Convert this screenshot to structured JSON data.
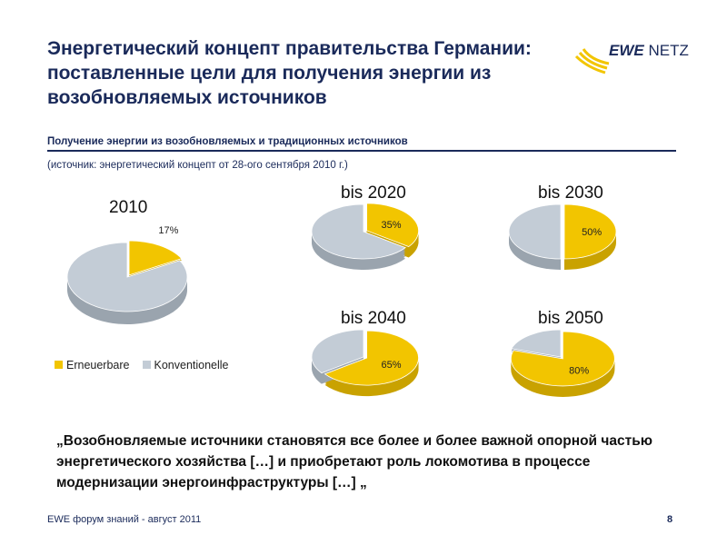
{
  "header": {
    "title": "Энергетический концепт правительства Германии: поставленные цели для получения энергии из возобновляемых источников",
    "logo_text_bold": "EWE",
    "logo_text": "NETZ"
  },
  "subtitle": "Получение энергии из возобновляемых и традиционных источников",
  "source": "(источник: энергетический концепт от 28-ого сентября 2010 г.)",
  "legend": [
    {
      "label": "Erneuerbare",
      "color": "#f2c500"
    },
    {
      "label": "Konventionelle",
      "color": "#c3ccd6"
    }
  ],
  "quote": "„Возобновляемые источники становятся все более и более важной опорной частью энергетического хозяйства […] и приобретают роль локомотива в процессе модернизации энергоинфраструктуры […] „",
  "footer": {
    "text": "EWE форум знаний - август 2011",
    "page": "8"
  },
  "chart_data": [
    {
      "type": "pie",
      "title": "2010",
      "labels": [
        "Erneuerbare",
        "Konventionelle"
      ],
      "values": [
        17,
        83
      ],
      "data_label": "17%"
    },
    {
      "type": "pie",
      "title": "bis 2020",
      "labels": [
        "Erneuerbare",
        "Konventionelle"
      ],
      "values": [
        35,
        65
      ],
      "data_label": "35%"
    },
    {
      "type": "pie",
      "title": "bis 2030",
      "labels": [
        "Erneuerbare",
        "Konventionelle"
      ],
      "values": [
        50,
        50
      ],
      "data_label": "50%"
    },
    {
      "type": "pie",
      "title": "bis 2040",
      "labels": [
        "Erneuerbare",
        "Konventionelle"
      ],
      "values": [
        65,
        35
      ],
      "data_label": "65%"
    },
    {
      "type": "pie",
      "title": "bis 2050",
      "labels": [
        "Erneuerbare",
        "Konventionelle"
      ],
      "values": [
        80,
        20
      ],
      "data_label": "80%"
    }
  ]
}
